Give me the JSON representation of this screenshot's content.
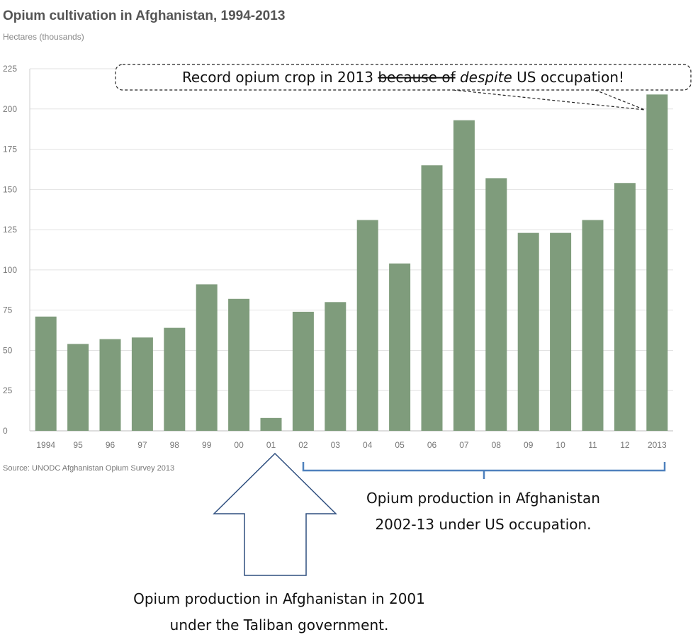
{
  "chart_data": {
    "type": "bar",
    "title": "Opium cultivation in Afghanistan, 1994-2013",
    "ylabel": "Hectares (thousands)",
    "source": "Source: UNODC Afghanistan Opium Survey 2013",
    "categories": [
      "1994",
      "95",
      "96",
      "97",
      "98",
      "99",
      "00",
      "01",
      "02",
      "03",
      "04",
      "05",
      "06",
      "07",
      "08",
      "09",
      "10",
      "11",
      "12",
      "2013"
    ],
    "values": [
      71,
      54,
      57,
      58,
      64,
      91,
      82,
      8,
      74,
      80,
      131,
      104,
      165,
      193,
      157,
      123,
      123,
      131,
      154,
      209
    ],
    "ylim": [
      0,
      225
    ],
    "yticks": [
      0,
      25,
      50,
      75,
      100,
      125,
      150,
      175,
      200,
      225
    ],
    "grid": true,
    "bar_color": "#7f9c7c",
    "annotations": {
      "callout_prefix": "Record opium crop in 2013 ",
      "callout_struck": "because of",
      "callout_italic": "despite",
      "callout_suffix": " US occupation!",
      "occupation_line1": "Opium production in Afghanistan",
      "occupation_line2": "2002-13 under US occupation.",
      "taliban_line1": "Opium production in Afghanistan in 2001",
      "taliban_line2": "under the Taliban government.",
      "annotation_color": "#4f81bd"
    }
  }
}
